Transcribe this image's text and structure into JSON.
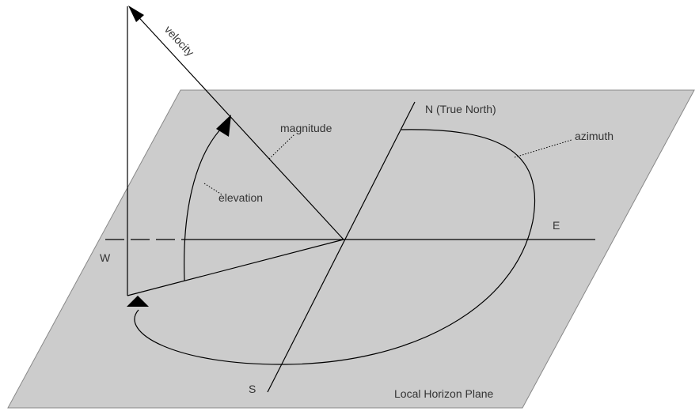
{
  "labels": {
    "velocity": "velocity",
    "magnitude": "magnitude",
    "elevation": "elevation",
    "north": "N (True North)",
    "azimuth": "azimuth",
    "east": "E",
    "west": "W",
    "south": "S",
    "plane": "Local Horizon Plane"
  },
  "colors": {
    "plane_fill": "#cccccc",
    "plane_stroke": "#888888",
    "line": "#000000",
    "text": "#333333"
  }
}
